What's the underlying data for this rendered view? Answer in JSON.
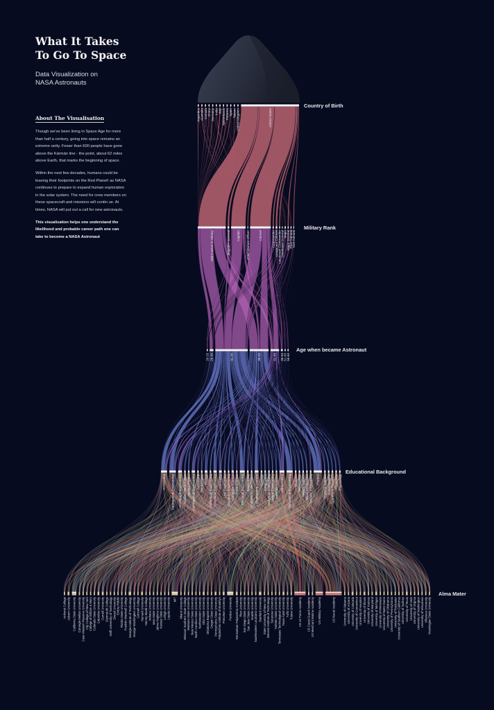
{
  "intro": {
    "title_line1": "What It Takes",
    "title_line2": "To Go To Space",
    "subtitle_line1": "Data Visualization on",
    "subtitle_line2": "NASA Astronauts",
    "about_heading": "About The Visualisation",
    "paragraph1": "Though we've been living in Space Age for more than half a century, going into space remains an extreme rarity. Fewer than 600 people have gone above the Kármán line - the point, about 62 miles above Earth, that marks the beginning of space.",
    "paragraph2": "Within the next few decades, humans could be leaving their footprints on the Red Planet! as NASA continues to prepare to expand human exploration in the solar system. The need for crew members on these spacecraft and missions will contin ue. At times, NASA will put out a call for new astronauts.",
    "paragraph3": "This visualization helps one understand the likelihood and probable career path one can take to become a NASA Astronaut"
  },
  "colors": {
    "background": "#070b1f",
    "country_to_rank": "#b4606e",
    "rank_to_age": "#b25fb4",
    "age_to_education": [
      "#6f80d6",
      "#9468cc"
    ],
    "education_to_alma": [
      "#e0806c",
      "#9cc48c",
      "#d8b46e",
      "#c45f7c",
      "#8fa8d8"
    ],
    "node_bar": "#f4f4f4",
    "alma_bar": "#d9c79c",
    "academy_bar": "#c87a78",
    "nose_cone": "#2c3142"
  },
  "diagram": {
    "type": "sankey",
    "stages": [
      {
        "title": "Country of Birth",
        "nodes": [
          {
            "name": "Argentina",
            "value": 1
          },
          {
            "name": "Australia",
            "value": 1
          },
          {
            "name": "Canada",
            "value": 1
          },
          {
            "name": "China",
            "value": 1
          },
          {
            "name": "Germany",
            "value": 1
          },
          {
            "name": "India",
            "value": 1
          },
          {
            "name": "Italy",
            "value": 1
          },
          {
            "name": "Netherlands",
            "value": 1
          },
          {
            "name": "Panama",
            "value": 1
          },
          {
            "name": "Spain",
            "value": 1
          },
          {
            "name": "Taiwan",
            "value": 1
          },
          {
            "name": "United Kingdom",
            "value": 1
          },
          {
            "name": "United States",
            "value": 345
          }
        ]
      },
      {
        "title": "Military Rank",
        "nodes": [
          {
            "name": "Didn't serve in military",
            "value": 135
          },
          {
            "name": "Brigadier General",
            "value": 8
          },
          {
            "name": "Captain",
            "value": 70
          },
          {
            "name": "Chief Warrant Officer",
            "value": 3
          },
          {
            "name": "Colonel",
            "value": 100
          },
          {
            "name": "Commander",
            "value": 6
          },
          {
            "name": "Lieutenant Colonel",
            "value": 8
          },
          {
            "name": "Lieutenant Commander",
            "value": 5
          },
          {
            "name": "Lieutenant General",
            "value": 3
          },
          {
            "name": "Major",
            "value": 6
          },
          {
            "name": "Major General",
            "value": 5
          },
          {
            "name": "Rear Admiral",
            "value": 5
          },
          {
            "name": "Vice Admiral",
            "value": 3
          }
        ]
      },
      {
        "title": "Age when became Astronaut",
        "nodes": [
          {
            "name": "20-25",
            "value": 5
          },
          {
            "name": "26-30",
            "value": 20
          },
          {
            "name": "31-35",
            "value": 170
          },
          {
            "name": "36-40",
            "value": 100
          },
          {
            "name": "41-45",
            "value": 45
          },
          {
            "name": "46-50",
            "value": 10
          },
          {
            "name": "51-55",
            "value": 5
          },
          {
            "name": "56-60",
            "value": 2
          }
        ]
      },
      {
        "title": "Educational Background",
        "nodes": [
          {
            "name": "Accounting",
            "value": 22
          },
          {
            "name": "Aeronautical Engineering",
            "value": 24
          },
          {
            "name": "Aerospace Engineering",
            "value": 14
          },
          {
            "name": "Applied Mathematics",
            "value": 4
          },
          {
            "name": "Applied Physics",
            "value": 5
          },
          {
            "name": "Astronautical Engineering",
            "value": 12
          },
          {
            "name": "Astronomy",
            "value": 4
          },
          {
            "name": "Biochemistry",
            "value": 4
          },
          {
            "name": "Biology",
            "value": 10
          },
          {
            "name": "Biomedical Engineering",
            "value": 4
          },
          {
            "name": "Chemical Engineering",
            "value": 12
          },
          {
            "name": "Chemistry",
            "value": 10
          },
          {
            "name": "Civil Engineering",
            "value": 6
          },
          {
            "name": "Computer Engineering",
            "value": 4
          },
          {
            "name": "Computer Science",
            "value": 8
          },
          {
            "name": "Earth Science",
            "value": 3
          },
          {
            "name": "Electrical Engineering",
            "value": 18
          },
          {
            "name": "Engineering",
            "value": 6
          },
          {
            "name": "Engineering Mechanics",
            "value": 4
          },
          {
            "name": "Engineering Science",
            "value": 14
          },
          {
            "name": "Geology",
            "value": 5
          },
          {
            "name": "Geophysics",
            "value": 3
          },
          {
            "name": "Industrial Engineering",
            "value": 4
          },
          {
            "name": "Marine Engineering",
            "value": 3
          },
          {
            "name": "Materials Science",
            "value": 4
          },
          {
            "name": "Mathematics",
            "value": 18
          },
          {
            "name": "Mechanical Engineering",
            "value": 22
          },
          {
            "name": "Medicine",
            "value": 5
          },
          {
            "name": "Meteorology",
            "value": 3
          },
          {
            "name": "Military Science",
            "value": 4
          },
          {
            "name": "Naval Architecture",
            "value": 3
          },
          {
            "name": "Nuclear Engineering",
            "value": 4
          },
          {
            "name": "Physics",
            "value": 30
          },
          {
            "name": "Physical Science",
            "value": 4
          },
          {
            "name": "Oceanography",
            "value": 3
          },
          {
            "name": "Operations Research",
            "value": 3
          },
          {
            "name": "Physiology",
            "value": 3
          },
          {
            "name": "Psychology",
            "value": 3
          }
        ]
      },
      {
        "title": "Alma Mater",
        "nodes": [
          {
            "name": "Amherst College",
            "value": 2
          },
          {
            "name": "Auburn University",
            "value": 3
          },
          {
            "name": "California State University",
            "value": 7
          },
          {
            "name": "Carnegie Mellon University",
            "value": 2
          },
          {
            "name": "Case Western Reserve University",
            "value": 2
          },
          {
            "name": "City College of New York",
            "value": 2
          },
          {
            "name": "College of William & Mary",
            "value": 2
          },
          {
            "name": "Colorado State University",
            "value": 2
          },
          {
            "name": "Columbia University",
            "value": 3
          },
          {
            "name": "Cornell University",
            "value": 3
          },
          {
            "name": "Dartmouth College",
            "value": 2
          },
          {
            "name": "Delft University of Technology",
            "value": 2
          },
          {
            "name": "Drexel University",
            "value": 2
          },
          {
            "name": "Embry-Riddle",
            "value": 2
          },
          {
            "name": "Florida State University",
            "value": 2
          },
          {
            "name": "Franklin Marshall College",
            "value": 2
          },
          {
            "name": "Georgia Institute of Technology",
            "value": 4
          },
          {
            "name": "George Washington University",
            "value": 2
          },
          {
            "name": "Grinnell College",
            "value": 2
          },
          {
            "name": "Harvard University",
            "value": 3
          },
          {
            "name": "Harvey Mudd College",
            "value": 2
          },
          {
            "name": "Indiana University",
            "value": 2
          },
          {
            "name": "Iowa State University",
            "value": 2
          },
          {
            "name": "Johns Hopkins University",
            "value": 2
          },
          {
            "name": "Kansas State University",
            "value": 2
          },
          {
            "name": "Lehigh University",
            "value": 2
          },
          {
            "name": "Loyola University",
            "value": 2
          },
          {
            "name": "MIT",
            "value": 10
          },
          {
            "name": "Miami University",
            "value": 2
          },
          {
            "name": "Missouri Southern State College",
            "value": 2
          },
          {
            "name": "Montana State University",
            "value": 2
          },
          {
            "name": "New Mexico State University",
            "value": 2
          },
          {
            "name": "North Carolina State University",
            "value": 2
          },
          {
            "name": "Northwestern University",
            "value": 2
          },
          {
            "name": "Ohio State University",
            "value": 3
          },
          {
            "name": "Oklahoma Baptist University",
            "value": 2
          },
          {
            "name": "Oregon State University",
            "value": 2
          },
          {
            "name": "Pennsylvania State University",
            "value": 3
          },
          {
            "name": "Polytechnic Institute of Brooklyn",
            "value": 2
          },
          {
            "name": "Princeton University",
            "value": 3
          },
          {
            "name": "Purdue University",
            "value": 10
          },
          {
            "name": "Rensselaer Polytechnic Institute",
            "value": 3
          },
          {
            "name": "Rice University",
            "value": 2
          },
          {
            "name": "San Diego State University",
            "value": 2
          },
          {
            "name": "San Jose State University",
            "value": 2
          },
          {
            "name": "Seattle University",
            "value": 2
          },
          {
            "name": "Southeastern Louisiana University",
            "value": 2
          },
          {
            "name": "Stanford University",
            "value": 4
          },
          {
            "name": "State University of New York",
            "value": 2
          },
          {
            "name": "Stevens Institute of Technology",
            "value": 2
          },
          {
            "name": "Syracuse University",
            "value": 2
          },
          {
            "name": "Tarleton State University",
            "value": 2
          },
          {
            "name": "Tennessee Technological University",
            "value": 2
          },
          {
            "name": "Texas A&M University",
            "value": 3
          },
          {
            "name": "Tufts University",
            "value": 2
          },
          {
            "name": "Tulane University",
            "value": 2
          },
          {
            "name": "US Air Force Academy",
            "value": 18
          },
          {
            "name": "US Coast Guard Academy",
            "value": 2
          },
          {
            "name": "US Merchant Marine Academy",
            "value": 2
          },
          {
            "name": "US Military Academy",
            "value": 12
          },
          {
            "name": "US Naval Academy",
            "value": 26
          },
          {
            "name": "University of Alabama",
            "value": 2
          },
          {
            "name": "University of Arizona",
            "value": 2
          },
          {
            "name": "University of Colorado",
            "value": 3
          },
          {
            "name": "University of Connecticut",
            "value": 2
          },
          {
            "name": "University of Houston",
            "value": 2
          },
          {
            "name": "University of Illinois",
            "value": 3
          },
          {
            "name": "University of Kansas",
            "value": 2
          },
          {
            "name": "University of Maryland",
            "value": 2
          },
          {
            "name": "University of Michigan",
            "value": 3
          },
          {
            "name": "University of Minnesota",
            "value": 2
          },
          {
            "name": "University of Notre Dame",
            "value": 2
          },
          {
            "name": "University of Oklahoma",
            "value": 2
          },
          {
            "name": "University of Pennsylvania",
            "value": 2
          },
          {
            "name": "University of Rochester",
            "value": 2
          },
          {
            "name": "University of Southern California",
            "value": 2
          },
          {
            "name": "University of Sydney",
            "value": 2
          },
          {
            "name": "University of Texas",
            "value": 3
          },
          {
            "name": "University of Utah",
            "value": 2
          },
          {
            "name": "University of Virginia",
            "value": 2
          },
          {
            "name": "University of Washington",
            "value": 2
          },
          {
            "name": "University of Wisconsin",
            "value": 2
          },
          {
            "name": "Villanova University",
            "value": 2
          },
          {
            "name": "Washington State University",
            "value": 2
          }
        ]
      }
    ]
  }
}
